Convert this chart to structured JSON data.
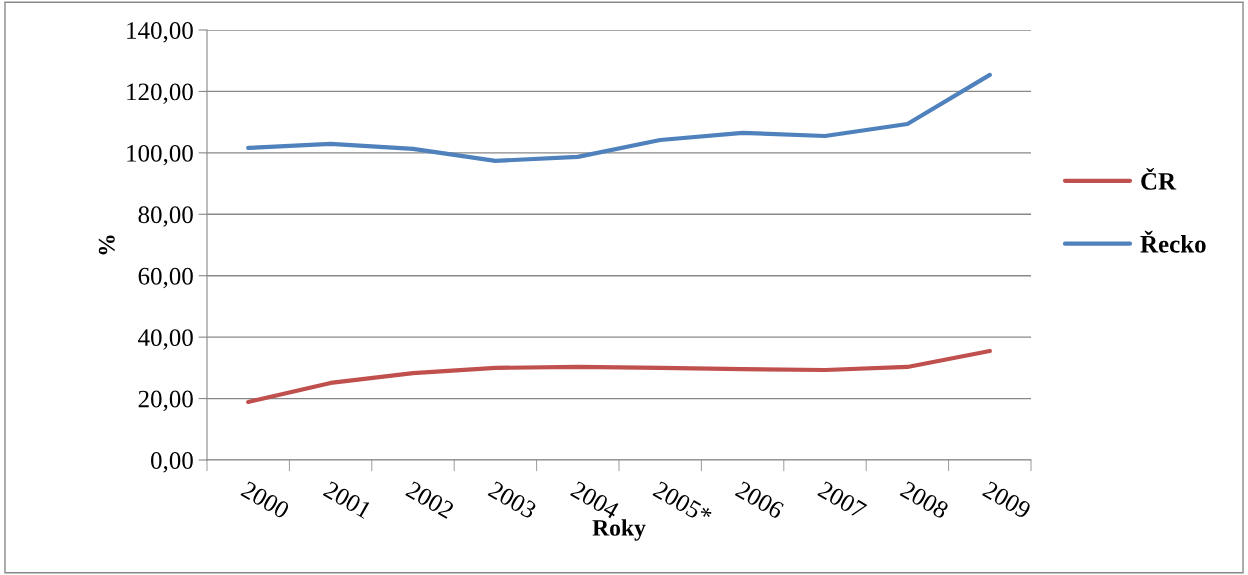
{
  "chart_data": {
    "type": "line",
    "xlabel": "Roky",
    "ylabel": "%",
    "categories": [
      "2000",
      "2001",
      "2002",
      "2003",
      "2004",
      "2005*",
      "2006",
      "2007",
      "2008",
      "2009"
    ],
    "series": [
      {
        "name": "ČR",
        "color": "#c0504d",
        "values": [
          18.9,
          25.1,
          28.3,
          30.0,
          30.3,
          30.0,
          29.6,
          29.3,
          30.3,
          35.5
        ]
      },
      {
        "name": "Řecko",
        "color": "#4f81bd",
        "values": [
          101.6,
          102.9,
          101.3,
          97.4,
          98.7,
          104.2,
          106.5,
          105.5,
          109.4,
          125.4
        ]
      }
    ],
    "ylim": [
      0,
      140
    ],
    "yticks": [
      {
        "value": 0,
        "label": "0,00"
      },
      {
        "value": 20,
        "label": "20,00"
      },
      {
        "value": 40,
        "label": "40,00"
      },
      {
        "value": 60,
        "label": "60,00"
      },
      {
        "value": 80,
        "label": "80,00"
      },
      {
        "value": 100,
        "label": "100,00"
      },
      {
        "value": 120,
        "label": "120,00"
      },
      {
        "value": 140,
        "label": "140,00"
      }
    ],
    "grid": "y",
    "legend": "right",
    "marker": "none",
    "line_style": "solid"
  }
}
